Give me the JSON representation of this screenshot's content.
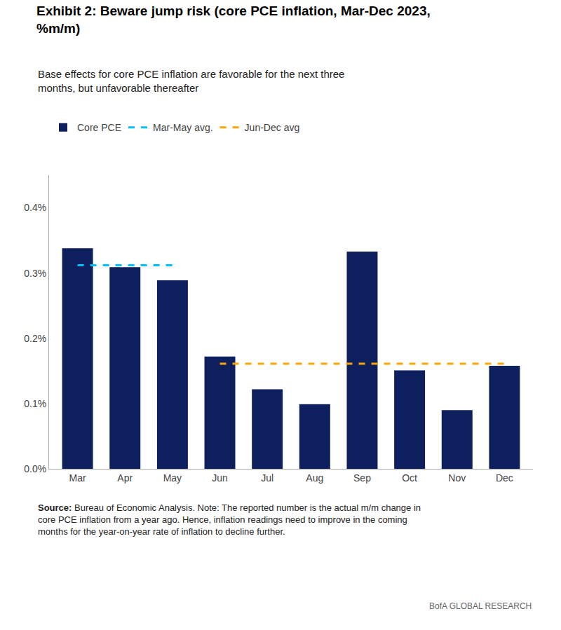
{
  "chart_data": {
    "type": "bar",
    "title": "Exhibit 2: Beware jump risk (core PCE inflation, Mar-Dec 2023,\n%m/m)",
    "subtitle": "Base effects for core PCE inflation are favorable for the next three\nmonths, but unfavorable thereafter",
    "categories": [
      "Mar",
      "Apr",
      "May",
      "Jun",
      "Jul",
      "Aug",
      "Sep",
      "Oct",
      "Nov",
      "Dec"
    ],
    "series": [
      {
        "name": "Core PCE",
        "type": "bar",
        "color": "#0d1f5c",
        "values": [
          0.338,
          0.309,
          0.289,
          0.172,
          0.122,
          0.099,
          0.333,
          0.151,
          0.09,
          0.158
        ]
      },
      {
        "name": "Mar-May avg.",
        "type": "line",
        "line_style": "dashed",
        "color": "#00BFFF",
        "values": [
          0.312,
          0.312,
          0.312,
          null,
          null,
          null,
          null,
          null,
          null,
          null
        ]
      },
      {
        "name": "Jun-Dec avg",
        "type": "line",
        "line_style": "dashed",
        "color": "#FFA500",
        "values": [
          null,
          null,
          null,
          0.161,
          0.161,
          0.161,
          0.161,
          0.161,
          0.161,
          0.161
        ]
      }
    ],
    "ylim": [
      0.0,
      0.45
    ],
    "yticks": [
      {
        "value": 0.0,
        "label": "0.0%"
      },
      {
        "value": 0.1,
        "label": "0.1%"
      },
      {
        "value": 0.2,
        "label": "0.2%"
      },
      {
        "value": 0.3,
        "label": "0.3%"
      },
      {
        "value": 0.4,
        "label": "0.4%"
      }
    ],
    "grid": false,
    "legend": "top-left",
    "annotations": [
      "Source: Bureau of Economic Analysis. Note: The reported number is the actual m/m change in core PCE inflation from a year ago. Hence, inflation readings need to improve in the coming months for the year-on-year rate of inflation to decline further.",
      "BofA GLOBAL RESEARCH"
    ]
  }
}
